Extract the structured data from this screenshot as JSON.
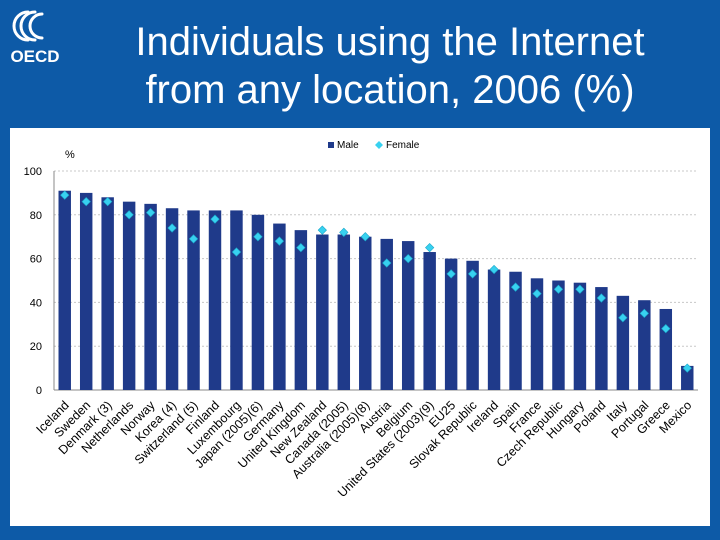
{
  "logo": {
    "text": "OECD",
    "icon": "oecd-logo-icon"
  },
  "title_line1": "Individuals using the Internet",
  "title_line2": "from any location, 2006 (%)",
  "colors": {
    "background": "#0d5aa7",
    "male": "#1f3a8a",
    "female": "#38d1f0",
    "grid": "#c8c8c8"
  },
  "chart_data": {
    "type": "bar",
    "title": "Individuals using the Internet from any location, 2006 (%)",
    "ylabel": "%",
    "ylim": [
      0,
      100
    ],
    "yticks": [
      0,
      20,
      40,
      60,
      80,
      100
    ],
    "grid": true,
    "legend_position": "top",
    "categories": [
      "Iceland",
      "Sweden",
      "Denmark (3)",
      "Netherlands",
      "Norway",
      "Korea (4)",
      "Switzerland (5)",
      "Finland",
      "Luxembourg",
      "Japan (2005)(6)",
      "Germany",
      "United Kingdom",
      "New Zealand",
      "Canada (2005)",
      "Australia (2005)(8)",
      "Austria",
      "Belgium",
      "United States (2003)(9)",
      "EU25",
      "Slovak Republic",
      "Ireland",
      "Spain",
      "France",
      "Czech Republic",
      "Hungary",
      "Poland",
      "Italy",
      "Portugal",
      "Greece",
      "Mexico"
    ],
    "series": [
      {
        "name": "Male",
        "type": "bar",
        "values": [
          91,
          90,
          88,
          86,
          85,
          83,
          82,
          82,
          82,
          80,
          76,
          73,
          71,
          71,
          70,
          69,
          68,
          63,
          60,
          59,
          55,
          54,
          51,
          50,
          49,
          47,
          43,
          41,
          37,
          11
        ]
      },
      {
        "name": "Female",
        "type": "marker",
        "values": [
          89,
          86,
          86,
          80,
          81,
          74,
          69,
          78,
          63,
          70,
          68,
          65,
          73,
          72,
          70,
          58,
          60,
          65,
          53,
          53,
          55,
          47,
          44,
          46,
          46,
          42,
          33,
          35,
          28,
          10
        ]
      }
    ]
  }
}
